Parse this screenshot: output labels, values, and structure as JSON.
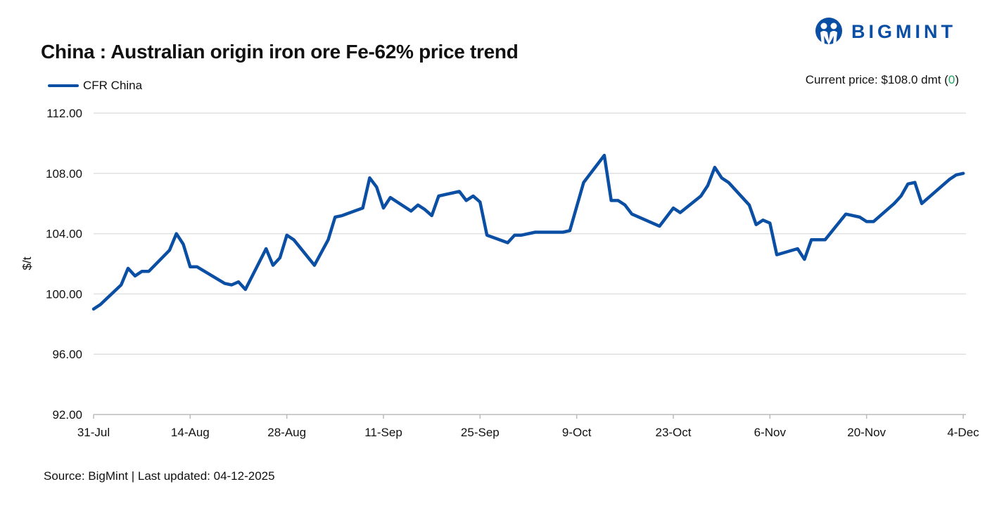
{
  "header": {
    "title": "China : Australian origin iron ore Fe-62% price trend",
    "logo_text": "BIGMINT",
    "current_price_label": "Current price: $108.0 dmt (",
    "current_price_change": "0",
    "current_price_close": ")"
  },
  "footer": {
    "source": "Source: BigMint | Last updated: 04-12-2025"
  },
  "colors": {
    "line": "#0a4fa3",
    "grid": "#e0e0e0",
    "change_positive": "#1aa35a"
  },
  "chart_data": {
    "type": "line",
    "title": "China : Australian origin iron ore Fe-62% price trend",
    "xlabel": "",
    "ylabel": "$/t",
    "x_unit": "days since 31-Jul-2025",
    "xlim": [
      0,
      126
    ],
    "ylim": [
      92,
      112
    ],
    "yticks": [
      "92.00",
      "96.00",
      "100.00",
      "104.00",
      "108.00",
      "112.00"
    ],
    "ytick_values": [
      92,
      96,
      100,
      104,
      108,
      112
    ],
    "xticks": [
      {
        "day": 0,
        "label": "31-Jul"
      },
      {
        "day": 14,
        "label": "14-Aug"
      },
      {
        "day": 28,
        "label": "28-Aug"
      },
      {
        "day": 42,
        "label": "11-Sep"
      },
      {
        "day": 56,
        "label": "25-Sep"
      },
      {
        "day": 70,
        "label": "9-Oct"
      },
      {
        "day": 84,
        "label": "23-Oct"
      },
      {
        "day": 98,
        "label": "6-Nov"
      },
      {
        "day": 112,
        "label": "20-Nov"
      },
      {
        "day": 126,
        "label": "4-Dec"
      }
    ],
    "grid": true,
    "legend": "top-left",
    "series": [
      {
        "name": "CFR China",
        "points": [
          [
            0,
            99.0
          ],
          [
            1,
            99.3
          ],
          [
            4,
            100.6
          ],
          [
            5,
            101.7
          ],
          [
            6,
            101.2
          ],
          [
            7,
            101.5
          ],
          [
            8,
            101.5
          ],
          [
            11,
            102.9
          ],
          [
            12,
            104.0
          ],
          [
            13,
            103.3
          ],
          [
            14,
            101.8
          ],
          [
            15,
            101.8
          ],
          [
            19,
            100.7
          ],
          [
            20,
            100.6
          ],
          [
            21,
            100.8
          ],
          [
            22,
            100.3
          ],
          [
            25,
            103.0
          ],
          [
            26,
            101.9
          ],
          [
            27,
            102.4
          ],
          [
            28,
            103.9
          ],
          [
            29,
            103.6
          ],
          [
            32,
            101.9
          ],
          [
            34,
            103.6
          ],
          [
            35,
            105.1
          ],
          [
            36,
            105.2
          ],
          [
            39,
            105.7
          ],
          [
            40,
            107.7
          ],
          [
            41,
            107.1
          ],
          [
            42,
            105.7
          ],
          [
            43,
            106.4
          ],
          [
            46,
            105.5
          ],
          [
            47,
            105.9
          ],
          [
            48,
            105.6
          ],
          [
            49,
            105.2
          ],
          [
            50,
            106.5
          ],
          [
            53,
            106.8
          ],
          [
            54,
            106.2
          ],
          [
            55,
            106.5
          ],
          [
            56,
            106.1
          ],
          [
            57,
            103.9
          ],
          [
            60,
            103.4
          ],
          [
            61,
            103.9
          ],
          [
            62,
            103.9
          ],
          [
            64,
            104.1
          ],
          [
            68,
            104.1
          ],
          [
            69,
            104.2
          ],
          [
            71,
            107.4
          ],
          [
            74,
            109.2
          ],
          [
            75,
            106.2
          ],
          [
            76,
            106.2
          ],
          [
            77,
            105.9
          ],
          [
            78,
            105.3
          ],
          [
            82,
            104.5
          ],
          [
            84,
            105.7
          ],
          [
            85,
            105.4
          ],
          [
            88,
            106.5
          ],
          [
            89,
            107.2
          ],
          [
            90,
            108.4
          ],
          [
            91,
            107.7
          ],
          [
            92,
            107.4
          ],
          [
            95,
            105.9
          ],
          [
            96,
            104.6
          ],
          [
            97,
            104.9
          ],
          [
            98,
            104.7
          ],
          [
            99,
            102.6
          ],
          [
            102,
            103.0
          ],
          [
            103,
            102.3
          ],
          [
            104,
            103.6
          ],
          [
            106,
            103.6
          ],
          [
            109,
            105.3
          ],
          [
            111,
            105.1
          ],
          [
            112,
            104.8
          ],
          [
            113,
            104.8
          ],
          [
            116,
            106.0
          ],
          [
            117,
            106.5
          ],
          [
            118,
            107.3
          ],
          [
            119,
            107.4
          ],
          [
            120,
            106.0
          ],
          [
            124,
            107.6
          ],
          [
            125,
            107.9
          ],
          [
            126,
            108.0
          ]
        ]
      }
    ]
  }
}
